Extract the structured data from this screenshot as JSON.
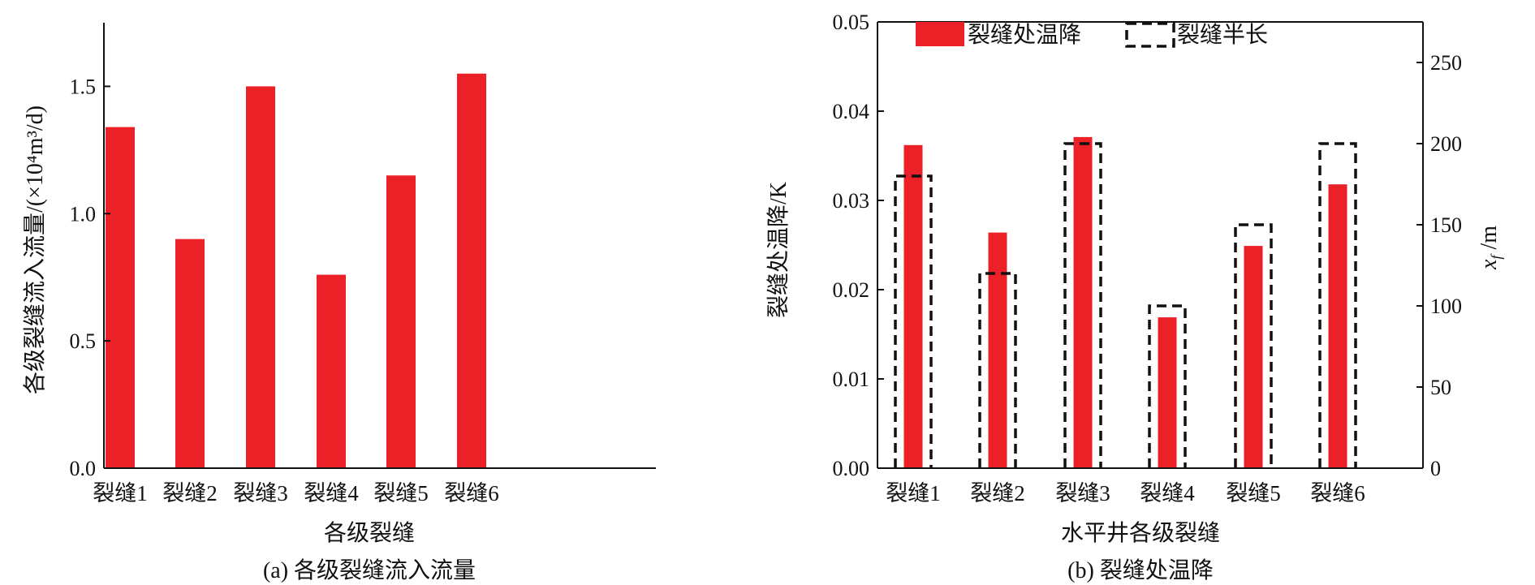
{
  "colors": {
    "bar": "#ec2027",
    "axis": "#111111",
    "dash": "#111111"
  },
  "chart_data": [
    {
      "type": "bar",
      "caption": "(a) 各级裂缝流入流量",
      "xlabel": "各级裂缝",
      "ylabel": "各级裂缝流入流量/(×10⁴m³/d)",
      "categories": [
        "裂缝1",
        "裂缝2",
        "裂缝3",
        "裂缝4",
        "裂缝5",
        "裂缝6"
      ],
      "values": [
        1.34,
        0.9,
        1.5,
        0.76,
        1.15,
        1.55
      ],
      "yticks": [
        "0.0",
        "0.5",
        "1.0",
        "1.5"
      ],
      "ylim": [
        0,
        1.75
      ],
      "grid": false
    },
    {
      "type": "bar",
      "caption": "(b) 裂缝处温降",
      "xlabel": "水平井各级裂缝",
      "ylabel": "裂缝处温降/K",
      "y2label": "xf /m",
      "categories": [
        "裂缝1",
        "裂缝2",
        "裂缝3",
        "裂缝4",
        "裂缝5",
        "裂缝6"
      ],
      "series": [
        {
          "name": "裂缝处温降",
          "axis": "left",
          "style": "filled",
          "values": [
            0.0362,
            0.0264,
            0.0371,
            0.0169,
            0.0249,
            0.0318
          ]
        },
        {
          "name": "裂缝半长",
          "axis": "right",
          "style": "dashed-outline",
          "values": [
            180,
            120,
            200,
            100,
            150,
            200
          ]
        }
      ],
      "yticks": [
        "0.00",
        "0.01",
        "0.02",
        "0.03",
        "0.04",
        "0.05"
      ],
      "ylim": [
        0,
        0.05
      ],
      "y2ticks": [
        "0",
        "50",
        "100",
        "150",
        "200",
        "250"
      ],
      "y2lim": [
        0,
        275
      ],
      "legend": "top",
      "grid": false
    }
  ]
}
